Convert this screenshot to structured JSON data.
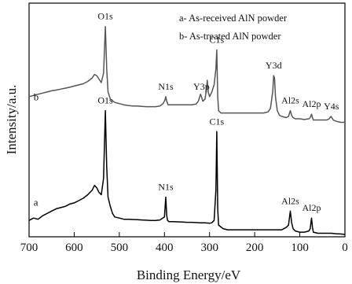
{
  "chart_data": {
    "type": "line",
    "xlabel": "Binding Energy/eV",
    "ylabel": "Intensity/a.u.",
    "xlim": [
      700,
      0
    ],
    "x_reversed": true,
    "x_ticks": [
      "700",
      "600",
      "500",
      "400",
      "300",
      "200",
      "100",
      "0"
    ],
    "x_tick_values": [
      700,
      600,
      500,
      400,
      300,
      200,
      100,
      0
    ],
    "y_ticks_shown": false,
    "legend_entries": [
      "a- As-received AlN powder",
      "b- As-treated AlN powder"
    ],
    "legend_placement": "top-right",
    "series": [
      {
        "name": "a",
        "label": "a",
        "label_at": 690,
        "baseline": 0.1,
        "color": "#000000",
        "points": [
          [
            700,
            0.07
          ],
          [
            690,
            0.08
          ],
          [
            680,
            0.075
          ],
          [
            670,
            0.09
          ],
          [
            660,
            0.1
          ],
          [
            650,
            0.11
          ],
          [
            640,
            0.12
          ],
          [
            630,
            0.125
          ],
          [
            620,
            0.13
          ],
          [
            610,
            0.14
          ],
          [
            600,
            0.145
          ],
          [
            590,
            0.155
          ],
          [
            580,
            0.165
          ],
          [
            570,
            0.18
          ],
          [
            560,
            0.2
          ],
          [
            555,
            0.22
          ],
          [
            550,
            0.21
          ],
          [
            545,
            0.19
          ],
          [
            540,
            0.18
          ],
          [
            535,
            0.25
          ],
          [
            531,
            0.54
          ],
          [
            528,
            0.3
          ],
          [
            525,
            0.17
          ],
          [
            520,
            0.13
          ],
          [
            515,
            0.1
          ],
          [
            510,
            0.085
          ],
          [
            500,
            0.08
          ],
          [
            490,
            0.075
          ],
          [
            480,
            0.075
          ],
          [
            470,
            0.074
          ],
          [
            460,
            0.073
          ],
          [
            450,
            0.072
          ],
          [
            440,
            0.071
          ],
          [
            430,
            0.07
          ],
          [
            420,
            0.07
          ],
          [
            410,
            0.072
          ],
          [
            400,
            0.085
          ],
          [
            397,
            0.17
          ],
          [
            395,
            0.09
          ],
          [
            393,
            0.07
          ],
          [
            390,
            0.065
          ],
          [
            380,
            0.065
          ],
          [
            370,
            0.064
          ],
          [
            360,
            0.063
          ],
          [
            350,
            0.062
          ],
          [
            340,
            0.062
          ],
          [
            330,
            0.061
          ],
          [
            320,
            0.06
          ],
          [
            310,
            0.06
          ],
          [
            300,
            0.058
          ],
          [
            295,
            0.06
          ],
          [
            290,
            0.07
          ],
          [
            286,
            0.2
          ],
          [
            284,
            0.45
          ],
          [
            282,
            0.12
          ],
          [
            280,
            0.05
          ],
          [
            270,
            0.035
          ],
          [
            260,
            0.03
          ],
          [
            250,
            0.03
          ],
          [
            240,
            0.03
          ],
          [
            230,
            0.03
          ],
          [
            220,
            0.03
          ],
          [
            210,
            0.03
          ],
          [
            200,
            0.03
          ],
          [
            190,
            0.03
          ],
          [
            180,
            0.03
          ],
          [
            170,
            0.03
          ],
          [
            160,
            0.03
          ],
          [
            150,
            0.03
          ],
          [
            140,
            0.03
          ],
          [
            130,
            0.04
          ],
          [
            125,
            0.05
          ],
          [
            121,
            0.11
          ],
          [
            118,
            0.06
          ],
          [
            115,
            0.035
          ],
          [
            110,
            0.025
          ],
          [
            100,
            0.02
          ],
          [
            90,
            0.02
          ],
          [
            80,
            0.025
          ],
          [
            77,
            0.035
          ],
          [
            74,
            0.08
          ],
          [
            72,
            0.04
          ],
          [
            70,
            0.02
          ],
          [
            60,
            0.015
          ],
          [
            50,
            0.015
          ],
          [
            40,
            0.015
          ],
          [
            30,
            0.015
          ],
          [
            20,
            0.013
          ],
          [
            10,
            0.012
          ],
          [
            0,
            0.01
          ]
        ],
        "peak_labels": [
          {
            "text": "O1s",
            "x": 531
          },
          {
            "text": "N1s",
            "x": 397
          },
          {
            "text": "C1s",
            "x": 284
          },
          {
            "text": "Al2s",
            "x": 121
          },
          {
            "text": "Al2p",
            "x": 74
          }
        ]
      },
      {
        "name": "b",
        "label": "b",
        "label_at": 690,
        "baseline": 0.55,
        "color": "#555555",
        "points": [
          [
            700,
            0.6
          ],
          [
            690,
            0.605
          ],
          [
            680,
            0.61
          ],
          [
            670,
            0.615
          ],
          [
            660,
            0.62
          ],
          [
            650,
            0.625
          ],
          [
            640,
            0.628
          ],
          [
            630,
            0.632
          ],
          [
            620,
            0.636
          ],
          [
            610,
            0.64
          ],
          [
            600,
            0.645
          ],
          [
            590,
            0.65
          ],
          [
            580,
            0.655
          ],
          [
            570,
            0.665
          ],
          [
            560,
            0.68
          ],
          [
            555,
            0.695
          ],
          [
            550,
            0.69
          ],
          [
            545,
            0.675
          ],
          [
            540,
            0.66
          ],
          [
            535,
            0.7
          ],
          [
            531,
            0.9
          ],
          [
            528,
            0.72
          ],
          [
            525,
            0.62
          ],
          [
            520,
            0.59
          ],
          [
            510,
            0.575
          ],
          [
            500,
            0.57
          ],
          [
            490,
            0.565
          ],
          [
            480,
            0.562
          ],
          [
            470,
            0.56
          ],
          [
            460,
            0.56
          ],
          [
            450,
            0.558
          ],
          [
            440,
            0.557
          ],
          [
            430,
            0.557
          ],
          [
            420,
            0.557
          ],
          [
            410,
            0.56
          ],
          [
            403,
            0.57
          ],
          [
            399,
            0.585
          ],
          [
            397,
            0.6
          ],
          [
            395,
            0.58
          ],
          [
            392,
            0.565
          ],
          [
            385,
            0.565
          ],
          [
            380,
            0.565
          ],
          [
            370,
            0.565
          ],
          [
            360,
            0.565
          ],
          [
            350,
            0.565
          ],
          [
            340,
            0.565
          ],
          [
            330,
            0.568
          ],
          [
            325,
            0.58
          ],
          [
            320,
            0.61
          ],
          [
            318,
            0.6
          ],
          [
            315,
            0.58
          ],
          [
            310,
            0.59
          ],
          [
            307,
            0.63
          ],
          [
            305,
            0.67
          ],
          [
            303,
            0.62
          ],
          [
            300,
            0.6
          ],
          [
            295,
            0.62
          ],
          [
            290,
            0.65
          ],
          [
            286,
            0.72
          ],
          [
            284,
            0.8
          ],
          [
            282,
            0.6
          ],
          [
            280,
            0.54
          ],
          [
            275,
            0.53
          ],
          [
            270,
            0.53
          ],
          [
            260,
            0.53
          ],
          [
            250,
            0.53
          ],
          [
            240,
            0.53
          ],
          [
            230,
            0.53
          ],
          [
            220,
            0.53
          ],
          [
            210,
            0.53
          ],
          [
            200,
            0.53
          ],
          [
            190,
            0.53
          ],
          [
            180,
            0.53
          ],
          [
            170,
            0.535
          ],
          [
            165,
            0.55
          ],
          [
            160,
            0.62
          ],
          [
            158,
            0.69
          ],
          [
            156,
            0.68
          ],
          [
            154,
            0.6
          ],
          [
            150,
            0.54
          ],
          [
            145,
            0.52
          ],
          [
            140,
            0.515
          ],
          [
            130,
            0.51
          ],
          [
            125,
            0.515
          ],
          [
            121,
            0.54
          ],
          [
            118,
            0.52
          ],
          [
            115,
            0.51
          ],
          [
            110,
            0.505
          ],
          [
            100,
            0.505
          ],
          [
            90,
            0.502
          ],
          [
            80,
            0.505
          ],
          [
            77,
            0.51
          ],
          [
            74,
            0.525
          ],
          [
            72,
            0.51
          ],
          [
            70,
            0.5
          ],
          [
            60,
            0.5
          ],
          [
            50,
            0.5
          ],
          [
            45,
            0.5
          ],
          [
            40,
            0.5
          ],
          [
            35,
            0.505
          ],
          [
            31,
            0.515
          ],
          [
            29,
            0.51
          ],
          [
            26,
            0.5
          ],
          [
            20,
            0.495
          ],
          [
            10,
            0.49
          ],
          [
            0,
            0.49
          ]
        ],
        "peak_labels": [
          {
            "text": "O1s",
            "x": 531
          },
          {
            "text": "N1s",
            "x": 397
          },
          {
            "text": "Y3p",
            "x": 318
          },
          {
            "text": "C1s",
            "x": 284
          },
          {
            "text": "Y3d",
            "x": 158
          },
          {
            "text": "Al2s",
            "x": 121
          },
          {
            "text": "Al2p",
            "x": 74
          },
          {
            "text": "Y4s",
            "x": 30
          }
        ]
      }
    ]
  }
}
